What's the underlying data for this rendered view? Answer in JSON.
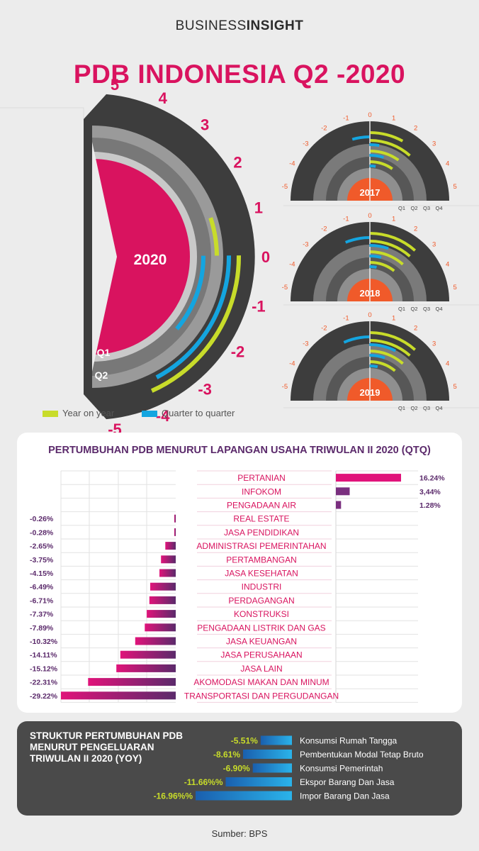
{
  "header": {
    "brand_part1": "BUSINESS",
    "brand_part2": "INSIGHT",
    "title": "PDB INDONESIA Q2 -2020"
  },
  "colors": {
    "accent": "#d9135f",
    "yoy": "#c8dc2a",
    "qtq": "#14a5e0",
    "year_badge": "#f05a2a"
  },
  "gauges": {
    "tick_labels": [
      "-5",
      "-4",
      "-3",
      "-2",
      "-1",
      "0",
      "1",
      "2",
      "3",
      "4",
      "5"
    ],
    "main": {
      "year": "2020",
      "ring_labels": [
        "Q1",
        "Q2"
      ]
    },
    "small": [
      {
        "year": "2017"
      },
      {
        "year": "2018"
      },
      {
        "year": "2019"
      }
    ],
    "quarter_labels": [
      "Q1",
      "Q2",
      "Q3",
      "Q4"
    ]
  },
  "legend": {
    "yoy": "Year on year",
    "qtq": "Quarter to quarter"
  },
  "chart_data": [
    {
      "type": "bar",
      "title": "PERTUMBUHAN PDB MENURUT LAPANGAN USAHA TRIWULAN II 2020 (QTQ)",
      "categories": [
        "PERTANIAN",
        "INFOKOM",
        "PENGADAAN AIR",
        "REAL ESTATE",
        "JASA PENDIDIKAN",
        "ADMINISTRASI PEMERINTAHAN",
        "PERTAMBANGAN",
        "JASA KESEHATAN",
        "INDUSTRI",
        "PERDAGANGAN",
        "KONSTRUKSI",
        "PENGADAAN LISTRIK DAN GAS",
        "JASA KEUANGAN",
        "JASA PERUSAHAAN",
        "JASA LAIN",
        "AKOMODASI MAKAN DAN MINUM",
        "TRANSPORTASI DAN PERGUDANGAN"
      ],
      "values": [
        16.24,
        3.44,
        1.28,
        -0.26,
        -0.28,
        -2.65,
        -3.75,
        -4.15,
        -6.49,
        -6.71,
        -7.37,
        -7.89,
        -10.32,
        -14.11,
        -15.12,
        -22.31,
        -29.22
      ],
      "value_labels": [
        "16.24%",
        "3,44%",
        "1.28%",
        "-0.26%",
        "-0.28%",
        "-2.65%",
        "-3.75%",
        "-4.15%",
        "-6.49%",
        "-6.71%",
        "-7.37%",
        "-7.89%",
        "-10.32%",
        "-14.11%",
        "-15.12%",
        "-22.31%",
        "-29.22%"
      ]
    },
    {
      "type": "bar",
      "title": "STRUKTUR PERTUMBUHAN PDB MENURUT PENGELUARAN TRIWULAN II 2020 (YOY)",
      "categories": [
        "Konsumsi Rumah Tangga",
        "Pembentukan Modal Tetap Bruto",
        "Konsumsi Pemerintah",
        "Ekspor Barang Dan Jasa",
        "Impor Barang Dan Jasa"
      ],
      "values": [
        -5.51,
        -8.61,
        -6.9,
        -11.66,
        -16.96
      ],
      "value_labels": [
        "-5.51%",
        "-8.61%",
        "-6.90%",
        "-11.66%%",
        "-16.96%%"
      ]
    }
  ],
  "footer": {
    "source": "Sumber: BPS"
  }
}
